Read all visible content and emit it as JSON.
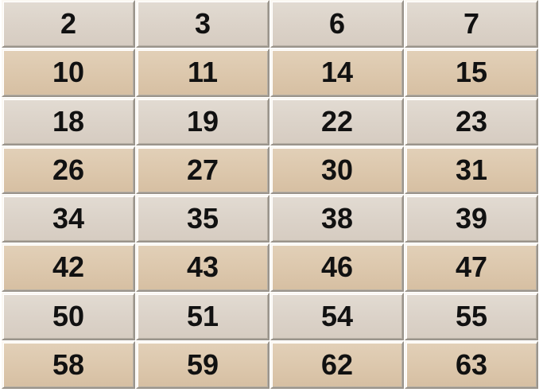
{
  "rows": [
    [
      "2",
      "3",
      "6",
      "7"
    ],
    [
      "10",
      "11",
      "14",
      "15"
    ],
    [
      "18",
      "19",
      "22",
      "23"
    ],
    [
      "26",
      "27",
      "30",
      "31"
    ],
    [
      "34",
      "35",
      "38",
      "39"
    ],
    [
      "42",
      "43",
      "46",
      "47"
    ],
    [
      "50",
      "51",
      "54",
      "55"
    ],
    [
      "58",
      "59",
      "62",
      "63"
    ]
  ],
  "colors": {
    "row_light": "#dbd2c8",
    "row_tan": "#dcc7ac",
    "text": "#111111"
  }
}
